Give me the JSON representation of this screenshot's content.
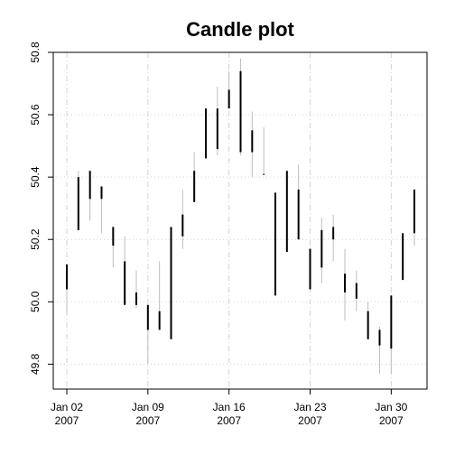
{
  "chart_data": {
    "type": "candlestick",
    "title": "Candle plot",
    "xlabel": "",
    "ylabel": "",
    "ylim": [
      49.72,
      50.8
    ],
    "xlim": [
      "2007-01-02",
      "2007-01-31"
    ],
    "y_ticks": [
      "49.8",
      "50.0",
      "50.2",
      "50.4",
      "50.6",
      "50.8"
    ],
    "x_ticks": [
      {
        "date": "2007-01-02",
        "label": "Jan 02",
        "year": "2007"
      },
      {
        "date": "2007-01-09",
        "label": "Jan 09",
        "year": "2007"
      },
      {
        "date": "2007-01-16",
        "label": "Jan 16",
        "year": "2007"
      },
      {
        "date": "2007-01-23",
        "label": "Jan 23",
        "year": "2007"
      },
      {
        "date": "2007-01-30",
        "label": "Jan 30",
        "year": "2007"
      }
    ],
    "grid": true,
    "colors": {
      "body": "#000000",
      "wick": "#bebebe",
      "grid": "#d3d3d3",
      "axis": "#000000"
    },
    "candles": [
      {
        "date": "2007-01-02",
        "open": 50.04,
        "close": 50.12,
        "low": 49.96,
        "high": 50.12
      },
      {
        "date": "2007-01-03",
        "open": 50.23,
        "close": 50.4,
        "low": 50.23,
        "high": 50.42
      },
      {
        "date": "2007-01-04",
        "open": 50.33,
        "close": 50.42,
        "low": 50.26,
        "high": 50.42
      },
      {
        "date": "2007-01-05",
        "open": 50.33,
        "close": 50.37,
        "low": 50.22,
        "high": 50.37
      },
      {
        "date": "2007-01-06",
        "open": 50.24,
        "close": 50.18,
        "low": 50.11,
        "high": 50.24
      },
      {
        "date": "2007-01-07",
        "open": 50.13,
        "close": 49.99,
        "low": 49.99,
        "high": 50.21
      },
      {
        "date": "2007-01-08",
        "open": 50.03,
        "close": 49.99,
        "low": 49.98,
        "high": 50.1
      },
      {
        "date": "2007-01-09",
        "open": 49.99,
        "close": 49.91,
        "low": 49.8,
        "high": 49.99
      },
      {
        "date": "2007-01-10",
        "open": 49.97,
        "close": 49.91,
        "low": 49.91,
        "high": 50.13
      },
      {
        "date": "2007-01-11",
        "open": 49.88,
        "close": 50.24,
        "low": 49.88,
        "high": 50.24
      },
      {
        "date": "2007-01-12",
        "open": 50.21,
        "close": 50.28,
        "low": 50.17,
        "high": 50.36
      },
      {
        "date": "2007-01-13",
        "open": 50.32,
        "close": 50.42,
        "low": 50.32,
        "high": 50.48
      },
      {
        "date": "2007-01-14",
        "open": 50.46,
        "close": 50.62,
        "low": 50.46,
        "high": 50.62
      },
      {
        "date": "2007-01-15",
        "open": 50.49,
        "close": 50.62,
        "low": 50.47,
        "high": 50.69
      },
      {
        "date": "2007-01-16",
        "open": 50.62,
        "close": 50.68,
        "low": 50.62,
        "high": 50.74
      },
      {
        "date": "2007-01-17",
        "open": 50.74,
        "close": 50.48,
        "low": 50.47,
        "high": 50.78
      },
      {
        "date": "2007-01-18",
        "open": 50.55,
        "close": 50.48,
        "low": 50.4,
        "high": 50.61
      },
      {
        "date": "2007-01-19",
        "open": 50.41,
        "close": 50.41,
        "low": 50.41,
        "high": 50.56
      },
      {
        "date": "2007-01-20",
        "open": 50.35,
        "close": 50.02,
        "low": 50.02,
        "high": 50.35
      },
      {
        "date": "2007-01-21",
        "open": 50.42,
        "close": 50.16,
        "low": 50.16,
        "high": 50.42
      },
      {
        "date": "2007-01-22",
        "open": 50.36,
        "close": 50.2,
        "low": 50.2,
        "high": 50.44
      },
      {
        "date": "2007-01-23",
        "open": 50.17,
        "close": 50.04,
        "low": 50.04,
        "high": 50.17
      },
      {
        "date": "2007-01-24",
        "open": 50.23,
        "close": 50.11,
        "low": 50.06,
        "high": 50.27
      },
      {
        "date": "2007-01-25",
        "open": 50.24,
        "close": 50.2,
        "low": 50.13,
        "high": 50.28
      },
      {
        "date": "2007-01-26",
        "open": 50.09,
        "close": 50.03,
        "low": 49.94,
        "high": 50.17
      },
      {
        "date": "2007-01-27",
        "open": 50.06,
        "close": 50.01,
        "low": 49.97,
        "high": 50.1
      },
      {
        "date": "2007-01-28",
        "open": 49.97,
        "close": 49.88,
        "low": 49.88,
        "high": 50.0
      },
      {
        "date": "2007-01-29",
        "open": 49.91,
        "close": 49.86,
        "low": 49.77,
        "high": 49.92
      },
      {
        "date": "2007-01-30",
        "open": 50.02,
        "close": 49.85,
        "low": 49.77,
        "high": 50.02
      },
      {
        "date": "2007-01-31",
        "open": 50.07,
        "close": 50.22,
        "low": 50.07,
        "high": 50.22
      },
      {
        "date": "2007-02-01",
        "open": 50.22,
        "close": 50.36,
        "low": 50.18,
        "high": 50.36
      }
    ]
  }
}
